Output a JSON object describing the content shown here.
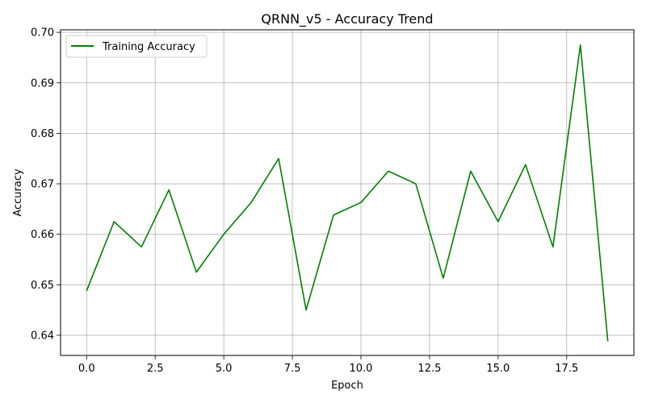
{
  "chart_data": {
    "type": "line",
    "title": "QRNN_v5 - Accuracy Trend",
    "xlabel": "Epoch",
    "ylabel": "Accuracy",
    "xlim": [
      -0.95,
      19.95
    ],
    "ylim": [
      0.636,
      0.7005
    ],
    "xticks": [
      0.0,
      2.5,
      5.0,
      7.5,
      10.0,
      12.5,
      15.0,
      17.5
    ],
    "xtick_labels": [
      "0.0",
      "2.5",
      "5.0",
      "7.5",
      "10.0",
      "12.5",
      "15.0",
      "17.5"
    ],
    "yticks": [
      0.64,
      0.65,
      0.66,
      0.67,
      0.68,
      0.69,
      0.7
    ],
    "ytick_labels": [
      "0.64",
      "0.65",
      "0.66",
      "0.67",
      "0.68",
      "0.69",
      "0.70"
    ],
    "grid": true,
    "legend_position": "top-left",
    "series": [
      {
        "name": "Training Accuracy",
        "color": "#008000",
        "x": [
          0,
          1,
          2,
          3,
          4,
          5,
          6,
          7,
          8,
          9,
          10,
          11,
          12,
          13,
          14,
          15,
          16,
          17,
          18,
          19
        ],
        "y": [
          0.6488,
          0.6625,
          0.6575,
          0.6688,
          0.6525,
          0.66,
          0.6663,
          0.675,
          0.645,
          0.6638,
          0.6663,
          0.6725,
          0.67,
          0.6513,
          0.6725,
          0.6625,
          0.6738,
          0.6575,
          0.6975,
          0.6388
        ]
      }
    ]
  }
}
